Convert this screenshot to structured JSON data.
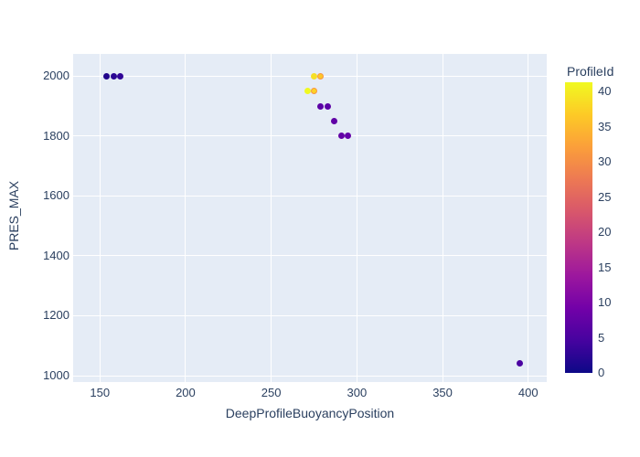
{
  "chart_data": {
    "type": "scatter",
    "title": "",
    "xlabel": "DeepProfileBuoyancyPosition",
    "ylabel": "PRES_MAX",
    "colorbar_title": "ProfileId",
    "x_ticks": [
      150,
      200,
      250,
      300,
      350,
      400
    ],
    "y_ticks": [
      1000,
      1200,
      1400,
      1600,
      1800,
      2000
    ],
    "colorbar_ticks": [
      0,
      5,
      10,
      15,
      20,
      25,
      30,
      35,
      40
    ],
    "x_range": [
      134.4,
      410.8
    ],
    "y_range": [
      978.7,
      2074.2
    ],
    "color_range": [
      0,
      41.3
    ],
    "grid": true,
    "legend_position": "colorbar-right",
    "plot_bg": "#e5ecf6",
    "grid_color": "#ffffff",
    "font_color": "#2a3f5f",
    "colorscale_name": "plasma",
    "colorscale": [
      "#0d0887",
      "#46039f",
      "#7201a8",
      "#9c179e",
      "#bd3786",
      "#d8576b",
      "#ed7953",
      "#fb9f3a",
      "#fdca26",
      "#f0f921"
    ],
    "marker_size_px": 7,
    "points": [
      {
        "x": 154,
        "y": 2000,
        "profile_id": 1,
        "color": "#22058b"
      },
      {
        "x": 158,
        "y": 2000,
        "profile_id": 2,
        "color": "#2a0593"
      },
      {
        "x": 162,
        "y": 2000,
        "profile_id": 3,
        "color": "#310597"
      },
      {
        "x": 271,
        "y": 1950,
        "profile_id": 41,
        "color": "#f0f921"
      },
      {
        "x": 275,
        "y": 1950,
        "profile_id": 38,
        "color": "#fdd225",
        "ring": "#f89540"
      },
      {
        "x": 275,
        "y": 2000,
        "profile_id": 39,
        "color": "#f6df26"
      },
      {
        "x": 279,
        "y": 2000,
        "profile_id": 38,
        "color": "#fdc627",
        "ring": "#f89540"
      },
      {
        "x": 279,
        "y": 1900,
        "profile_id": 8,
        "color": "#5c01a6"
      },
      {
        "x": 283,
        "y": 1900,
        "profile_id": 8,
        "color": "#5c01a6"
      },
      {
        "x": 287,
        "y": 1850,
        "profile_id": 9,
        "color": "#6001a6"
      },
      {
        "x": 291,
        "y": 1800,
        "profile_id": 9,
        "color": "#6201a6"
      },
      {
        "x": 295,
        "y": 1800,
        "profile_id": 10,
        "color": "#6301a8"
      },
      {
        "x": 395,
        "y": 1040,
        "profile_id": 6,
        "color": "#4b03a1"
      }
    ]
  }
}
